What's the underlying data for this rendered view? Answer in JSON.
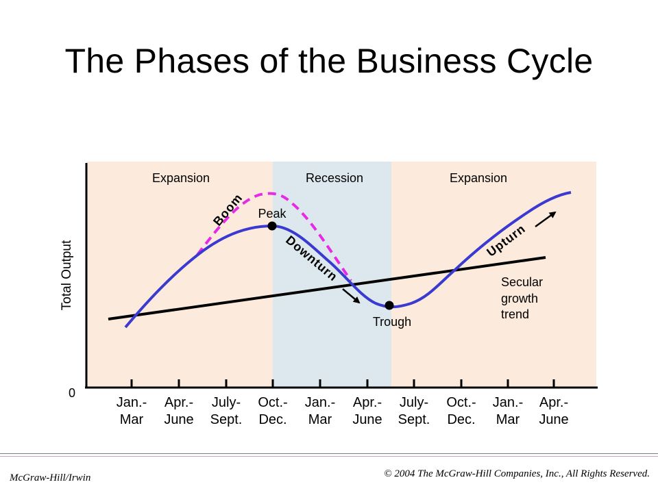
{
  "title": "The Phases of the Business Cycle",
  "colors": {
    "expansion_bg": "#fcebdc",
    "recession_bg": "#dde8ee",
    "actual_output": "#3a3ad0",
    "boom_dashed": "#e62ae6",
    "trend_line": "#000000"
  },
  "phases": [
    {
      "label": "Expansion"
    },
    {
      "label": "Recession"
    },
    {
      "label": "Expansion"
    }
  ],
  "y_axis": {
    "label": "Total Output",
    "zero_label": "0"
  },
  "x_ticks": [
    {
      "line1": "Jan.-",
      "line2": "Mar"
    },
    {
      "line1": "Apr.-",
      "line2": "June"
    },
    {
      "line1": "July-",
      "line2": "Sept."
    },
    {
      "line1": "Oct.-",
      "line2": "Dec."
    },
    {
      "line1": "Jan.-",
      "line2": "Mar"
    },
    {
      "line1": "Apr.-",
      "line2": "June"
    },
    {
      "line1": "July-",
      "line2": "Sept."
    },
    {
      "line1": "Oct.-",
      "line2": "Dec."
    },
    {
      "line1": "Jan.-",
      "line2": "Mar"
    },
    {
      "line1": "Apr.-",
      "line2": "June"
    }
  ],
  "annotations": {
    "peak": "Peak",
    "trough": "Trough",
    "boom": "Boom",
    "downturn": "Downturn",
    "upturn": "Upturn",
    "secular_line1": "Secular",
    "secular_line2": "growth",
    "secular_line3": "trend"
  },
  "footer": {
    "left": "McGraw-Hill/Irwin",
    "right": "© 2004 The McGraw-Hill Companies, Inc., All Rights Reserved."
  }
}
